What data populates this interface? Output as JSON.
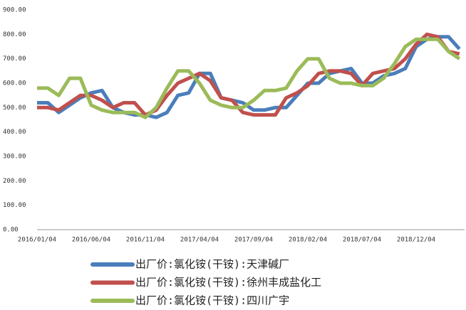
{
  "chart_data": {
    "type": "line",
    "categories": [
      "2016/01/04",
      null,
      null,
      null,
      null,
      "2016/06/04",
      null,
      null,
      null,
      null,
      "2016/11/04",
      null,
      null,
      null,
      null,
      "2017/04/04",
      null,
      null,
      null,
      null,
      "2017/09/04",
      null,
      null,
      null,
      null,
      "2018/02/04",
      null,
      null,
      null,
      null,
      "2018/07/04",
      null,
      null,
      null,
      null,
      "2018/12/04",
      null,
      null,
      null,
      null
    ],
    "series": [
      {
        "name": "出厂价:氯化铵(干铵):天津碱厂",
        "color": "#4a7ebb",
        "values": [
          520,
          520,
          480,
          510,
          540,
          560,
          570,
          500,
          480,
          470,
          470,
          460,
          480,
          550,
          560,
          640,
          640,
          540,
          530,
          520,
          490,
          490,
          500,
          500,
          550,
          600,
          600,
          640,
          650,
          660,
          600,
          600,
          630,
          640,
          660,
          750,
          780,
          790,
          790,
          740
        ]
      },
      {
        "name": "出厂价:氯化铵(干铵):徐州丰成盐化工",
        "color": "#c0504d",
        "values": [
          500,
          500,
          490,
          520,
          550,
          550,
          530,
          500,
          520,
          520,
          470,
          490,
          550,
          600,
          620,
          640,
          610,
          540,
          530,
          480,
          470,
          470,
          470,
          540,
          560,
          590,
          640,
          650,
          650,
          640,
          590,
          640,
          650,
          660,
          700,
          760,
          800,
          790,
          730,
          720
        ]
      },
      {
        "name": "出厂价:氯化铵(干铵):四川广宇",
        "color": "#9bbb59",
        "values": [
          580,
          580,
          550,
          620,
          620,
          510,
          490,
          480,
          480,
          480,
          460,
          500,
          580,
          650,
          650,
          600,
          530,
          510,
          500,
          500,
          530,
          570,
          570,
          580,
          650,
          700,
          700,
          620,
          600,
          600,
          590,
          590,
          620,
          680,
          750,
          780,
          780,
          780,
          730,
          700
        ]
      }
    ],
    "ylim": [
      0,
      900
    ],
    "yticks": [
      {
        "value": 0,
        "label": "0.00"
      },
      {
        "value": 100,
        "label": "100.00"
      },
      {
        "value": 200,
        "label": "200.00"
      },
      {
        "value": 300,
        "label": "300.00"
      },
      {
        "value": 400,
        "label": "400.00"
      },
      {
        "value": 500,
        "label": "500.00"
      },
      {
        "value": 600,
        "label": "600.00"
      },
      {
        "value": 700,
        "label": "700.00"
      },
      {
        "value": 800,
        "label": "800.00"
      },
      {
        "value": 900,
        "label": "900.00"
      }
    ],
    "legend": "bottom"
  }
}
